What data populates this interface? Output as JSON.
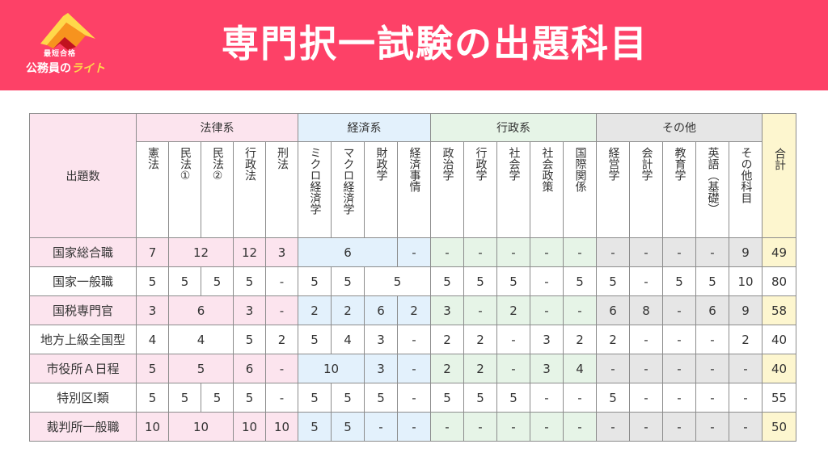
{
  "header": {
    "title": "専門択一試験の出題科目",
    "logo_badge": "最短合格",
    "logo_text_main": "公務員の",
    "logo_text_accent": "ライト"
  },
  "table": {
    "corner_label": "出題数",
    "groups": [
      "法律系",
      "経済系",
      "行政系",
      "その他"
    ],
    "total_label": "合計",
    "subjects": {
      "law": [
        "憲法",
        "民法①",
        "民法②",
        "行政法",
        "刑法"
      ],
      "econ": [
        "ミクロ経済学",
        "マクロ経済学",
        "財政学",
        "経済事情"
      ],
      "admin": [
        "政治学",
        "行政学",
        "社会学",
        "社会政策",
        "国際関係"
      ],
      "other": [
        "経営学",
        "会計学",
        "教育学",
        "英語（基礎）",
        "その他科目"
      ]
    },
    "rows": [
      {
        "name": "国家総合職",
        "law": [
          "7",
          "12",
          "12",
          "3"
        ],
        "econ": [
          "6",
          "-"
        ],
        "admin": [
          "-",
          "-",
          "-",
          "-",
          "-"
        ],
        "other": [
          "-",
          "-",
          "-",
          "-",
          "9"
        ],
        "total": "49"
      },
      {
        "name": "国家一般職",
        "law": [
          "5",
          "5",
          "5",
          "5",
          "-"
        ],
        "econ": [
          "5",
          "5",
          "5"
        ],
        "admin": [
          "5",
          "5",
          "5",
          "-",
          "5"
        ],
        "other": [
          "5",
          "-",
          "5",
          "5",
          "10"
        ],
        "total": "80"
      },
      {
        "name": "国税専門官",
        "law": [
          "3",
          "6",
          "3",
          "-"
        ],
        "econ": [
          "2",
          "2",
          "6",
          "2"
        ],
        "admin": [
          "3",
          "-",
          "2",
          "-",
          "-"
        ],
        "other": [
          "6",
          "8",
          "-",
          "6",
          "9"
        ],
        "total": "58"
      },
      {
        "name": "地方上級全国型",
        "law": [
          "4",
          "4",
          "5",
          "2"
        ],
        "econ": [
          "5",
          "4",
          "3",
          "-"
        ],
        "admin": [
          "2",
          "2",
          "-",
          "3",
          "2"
        ],
        "other": [
          "2",
          "-",
          "-",
          "-",
          "2"
        ],
        "total": "40"
      },
      {
        "name": "市役所Ａ日程",
        "law": [
          "5",
          "5",
          "6",
          "-"
        ],
        "econ": [
          "10",
          "3",
          "-"
        ],
        "admin": [
          "2",
          "2",
          "-",
          "3",
          "4"
        ],
        "other": [
          "-",
          "-",
          "-",
          "-",
          "-"
        ],
        "total": "40"
      },
      {
        "name": "特別区Ⅰ類",
        "law": [
          "5",
          "5",
          "5",
          "5",
          "-"
        ],
        "econ": [
          "5",
          "5",
          "5",
          "-"
        ],
        "admin": [
          "5",
          "5",
          "5",
          "-",
          "-"
        ],
        "other": [
          "5",
          "-",
          "-",
          "-",
          "-"
        ],
        "total": "55"
      },
      {
        "name": "裁判所一般職",
        "law": [
          "10",
          "10",
          "10",
          "10"
        ],
        "econ": [
          "5",
          "5",
          "-",
          "-"
        ],
        "admin": [
          "-",
          "-",
          "-",
          "-",
          "-"
        ],
        "other": [
          "-",
          "-",
          "-",
          "-",
          "-"
        ],
        "total": "50"
      }
    ]
  },
  "colors": {
    "banner": "#fd4167",
    "law": "#fce4ee",
    "econ": "#e3f1fc",
    "admin": "#e6f4e7",
    "other": "#e6e6e6",
    "total": "#fdf6cf"
  }
}
